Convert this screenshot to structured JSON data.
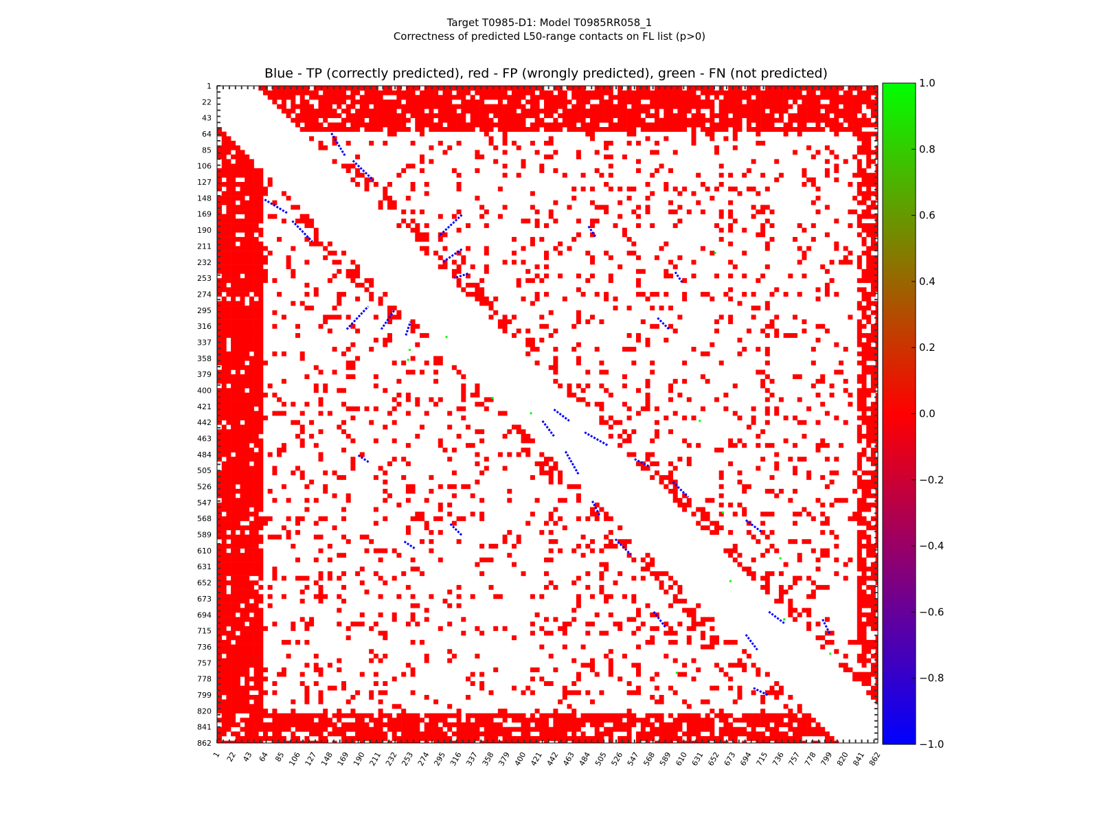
{
  "chart_data": {
    "type": "heatmap",
    "title_lines": [
      "Target T0985-D1: Model T0985RR058_1",
      "Correctness of predicted L50-range contacts on FL list (p>0)"
    ],
    "subtitle": "Blue - TP (correctly predicted), red - FP (wrongly predicted), green - FN (not predicted)",
    "residue_range": [
      1,
      862
    ],
    "x_ticks": [
      "1",
      "22",
      "43",
      "64",
      "85",
      "106",
      "127",
      "148",
      "169",
      "190",
      "211",
      "232",
      "253",
      "274",
      "295",
      "316",
      "337",
      "358",
      "379",
      "400",
      "421",
      "442",
      "463",
      "484",
      "505",
      "526",
      "547",
      "568",
      "589",
      "610",
      "631",
      "652",
      "673",
      "694",
      "715",
      "736",
      "757",
      "778",
      "799",
      "820",
      "841",
      "862"
    ],
    "y_ticks": [
      "1",
      "22",
      "43",
      "64",
      "85",
      "106",
      "127",
      "148",
      "169",
      "190",
      "211",
      "232",
      "253",
      "274",
      "295",
      "316",
      "337",
      "358",
      "379",
      "400",
      "421",
      "442",
      "463",
      "484",
      "505",
      "526",
      "547",
      "568",
      "589",
      "610",
      "631",
      "652",
      "673",
      "694",
      "715",
      "736",
      "757",
      "778",
      "799",
      "820",
      "841",
      "862"
    ],
    "colorbar": {
      "range": [
        -1.0,
        1.0
      ],
      "ticks": [
        "1.0",
        "0.8",
        "0.6",
        "0.4",
        "0.2",
        "0.0",
        "−0.2",
        "−0.4",
        "−0.6",
        "−0.8",
        "−1.0"
      ],
      "colors": [
        "#00ff00",
        "#ff0000",
        "#0000ff"
      ]
    },
    "category_colors": {
      "TP": "#0000ff",
      "FP": "#ff0000",
      "FN": "#00ff00"
    },
    "excluded_diagonal_band": 50,
    "tp_segments": [
      [
        [
          150,
          63
        ],
        [
          168,
          93
        ]
      ],
      [
        [
          178,
          99
        ],
        [
          205,
          125
        ]
      ],
      [
        [
          320,
          170
        ],
        [
          290,
          198
        ]
      ],
      [
        [
          320,
          215
        ],
        [
          295,
          232
        ]
      ],
      [
        [
          328,
          247
        ],
        [
          310,
          253
        ]
      ],
      [
        [
          440,
          425
        ],
        [
          460,
          440
        ]
      ],
      [
        [
          480,
          455
        ],
        [
          510,
          472
        ]
      ],
      [
        [
          545,
          490
        ],
        [
          565,
          500
        ]
      ],
      [
        [
          595,
          520
        ],
        [
          615,
          540
        ]
      ],
      [
        [
          690,
          570
        ],
        [
          710,
          585
        ]
      ],
      [
        [
          790,
          700
        ],
        [
          800,
          720
        ]
      ],
      [
        [
          720,
          690
        ],
        [
          740,
          705
        ]
      ],
      [
        [
          185,
          485
        ],
        [
          200,
          495
        ]
      ],
      [
        [
          305,
          575
        ],
        [
          320,
          590
        ]
      ],
      [
        [
          245,
          598
        ],
        [
          260,
          608
        ]
      ]
    ],
    "fn_points": [
      [
        347,
        252
      ],
      [
        360,
        250
      ],
      [
        220,
        650
      ],
      [
        440,
        630
      ],
      [
        560,
        660
      ],
      [
        650,
        670
      ],
      [
        700,
        740
      ],
      [
        770,
        600
      ],
      [
        330,
        300
      ],
      [
        410,
        360
      ],
      [
        430,
        410
      ],
      [
        620,
        735
      ],
      [
        745,
        800
      ]
    ]
  }
}
